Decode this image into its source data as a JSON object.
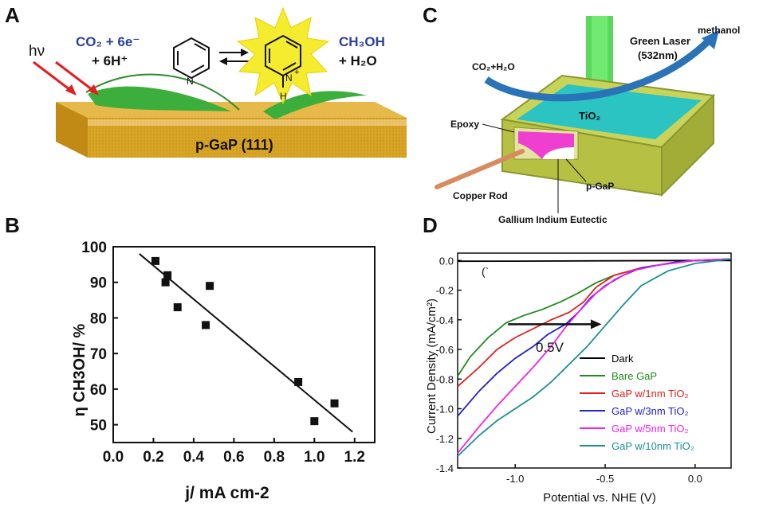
{
  "panel_labels": {
    "a": "A",
    "b": "B",
    "c": "C",
    "d": "D"
  },
  "panel_a": {
    "hv": "hν",
    "co2_line1": "CO₂ + 6e⁻",
    "co2_line2": "+ 6H⁺",
    "ch3oh_line1": "CH₃OH",
    "ch3oh_line2": "+ H₂O",
    "substrate_label": "p-GaP (111)",
    "n_neutral": "N",
    "n_protonated": "N",
    "n_plus": "+",
    "h_label": "H",
    "colors": {
      "substrate": "#d9a526",
      "leaf": "#3cae3c",
      "star": "#f6ec2f",
      "text_blue": "#2e3f9c",
      "arrow": "#e02020"
    }
  },
  "panel_b": {
    "chart_data": {
      "type": "scatter",
      "xlabel": "j/ mA cm-2",
      "ylabel": "η CH3OH/ %",
      "xlim": [
        0.0,
        1.3
      ],
      "ylim": [
        45,
        100
      ],
      "x_ticks": [
        "0.0",
        "0.2",
        "0.4",
        "0.6",
        "0.8",
        "1.0",
        "1.2"
      ],
      "y_ticks": [
        "50",
        "60",
        "70",
        "80",
        "90",
        "100"
      ],
      "points": [
        {
          "x": 0.21,
          "y": 96
        },
        {
          "x": 0.26,
          "y": 90
        },
        {
          "x": 0.27,
          "y": 92
        },
        {
          "x": 0.32,
          "y": 83
        },
        {
          "x": 0.46,
          "y": 78
        },
        {
          "x": 0.48,
          "y": 89
        },
        {
          "x": 0.92,
          "y": 62
        },
        {
          "x": 1.0,
          "y": 51
        },
        {
          "x": 1.1,
          "y": 56
        }
      ],
      "fit_line": {
        "x": [
          0.13,
          1.19
        ],
        "y": [
          98,
          48
        ]
      }
    }
  },
  "panel_c": {
    "methanol": "methanol",
    "laser_line1": "Green Laser",
    "laser_line2": "(532nm)",
    "reactants": "CO₂+H₂O",
    "tio2": "TiO₂",
    "epoxy": "Epoxy",
    "copper_rod": "Copper Rod",
    "pgap": "p-GaP",
    "eutectic": "Gallium Indium Eutectic",
    "colors": {
      "laser": "#3bd43b",
      "tio2": "#2cc3c3",
      "epoxy": "#c8d35a",
      "gap": "#ef3fd0",
      "copper": "#d98a5f",
      "arrow": "#2a73b8"
    }
  },
  "panel_d": {
    "chart_data": {
      "type": "line",
      "xlabel": "Potential vs. NHE (V)",
      "ylabel": "Current Density (mA/cm²)",
      "xlim": [
        -1.32,
        0.2
      ],
      "ylim": [
        -1.4,
        0.05
      ],
      "x_ticks": [
        "-1.0",
        "-0.5",
        "0.0"
      ],
      "y_ticks": [
        "0.0",
        "-0.2",
        "-0.4",
        "-0.6",
        "-0.8",
        "-1.0",
        "-1.2",
        "-1.4"
      ],
      "annotation": "0.5V",
      "bracket_text": "(`",
      "series": [
        {
          "name": "Dark",
          "color": "#000000",
          "x": [
            -1.32,
            -1.0,
            -0.5,
            0.0,
            0.2
          ],
          "y": [
            -0.005,
            -0.004,
            -0.002,
            0.0,
            0.0
          ]
        },
        {
          "name": "Bare GaP",
          "color": "#1e8c1e",
          "x": [
            -1.32,
            -1.25,
            -1.15,
            -1.05,
            -0.95,
            -0.85,
            -0.75,
            -0.65,
            -0.55,
            -0.45,
            -0.3,
            -0.1,
            0.0,
            0.2
          ],
          "y": [
            -0.78,
            -0.65,
            -0.52,
            -0.42,
            -0.37,
            -0.33,
            -0.28,
            -0.22,
            -0.15,
            -0.1,
            -0.05,
            -0.01,
            0.0,
            0.01
          ]
        },
        {
          "name": "GaP w/1nm TiO₂",
          "color": "#e02020",
          "x": [
            -1.32,
            -1.2,
            -1.1,
            -1.0,
            -0.9,
            -0.8,
            -0.7,
            -0.62,
            -0.55,
            -0.45,
            -0.3,
            -0.1,
            0.0,
            0.2
          ],
          "y": [
            -0.85,
            -0.72,
            -0.6,
            -0.52,
            -0.46,
            -0.4,
            -0.35,
            -0.28,
            -0.18,
            -0.1,
            -0.05,
            -0.01,
            0.0,
            0.01
          ]
        },
        {
          "name": "GaP w/3nm TiO₂",
          "color": "#2020d0",
          "x": [
            -1.32,
            -1.2,
            -1.1,
            -1.0,
            -0.9,
            -0.82,
            -0.72,
            -0.65,
            -0.58,
            -0.5,
            -0.4,
            -0.3,
            -0.1,
            0.0,
            0.2
          ],
          "y": [
            -1.05,
            -0.88,
            -0.76,
            -0.66,
            -0.58,
            -0.5,
            -0.43,
            -0.35,
            -0.25,
            -0.17,
            -0.1,
            -0.05,
            -0.01,
            0.0,
            0.01
          ]
        },
        {
          "name": "GaP w/5nm TiO₂",
          "color": "#ee22ee",
          "x": [
            -1.32,
            -1.2,
            -1.1,
            -1.0,
            -0.9,
            -0.8,
            -0.72,
            -0.65,
            -0.55,
            -0.45,
            -0.35,
            -0.2,
            0.0,
            0.2
          ],
          "y": [
            -1.3,
            -1.12,
            -0.98,
            -0.85,
            -0.72,
            -0.58,
            -0.45,
            -0.35,
            -0.22,
            -0.13,
            -0.07,
            -0.03,
            0.0,
            0.01
          ]
        },
        {
          "name": "GaP w/10nm TiO₂",
          "color": "#1a9090",
          "x": [
            -1.32,
            -1.2,
            -1.1,
            -1.0,
            -0.9,
            -0.8,
            -0.7,
            -0.6,
            -0.5,
            -0.4,
            -0.3,
            -0.15,
            0.0,
            0.2
          ],
          "y": [
            -1.32,
            -1.18,
            -1.08,
            -1.0,
            -0.92,
            -0.82,
            -0.7,
            -0.58,
            -0.44,
            -0.3,
            -0.17,
            -0.07,
            -0.02,
            0.01
          ]
        }
      ]
    }
  }
}
